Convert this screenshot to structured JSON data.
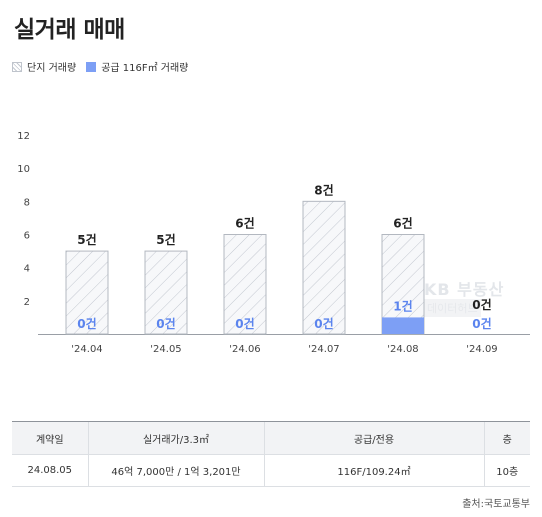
{
  "page": {
    "title": "실거래 매매",
    "source": "출처:국토교통부"
  },
  "legend": {
    "complex_label": "단지 거래량",
    "unit_label": "공급 116F㎡ 거래량"
  },
  "watermark": {
    "line1": "KB 부동산",
    "line2": "데이터허브"
  },
  "colors": {
    "accent_blue": "#7d9ff5",
    "count_blue": "#5b84ee",
    "hatch_line": "#c3c8d0"
  },
  "chart_data": {
    "type": "bar",
    "categories": [
      "'24.04",
      "'24.05",
      "'24.06",
      "'24.07",
      "'24.08",
      "'24.09"
    ],
    "series": [
      {
        "name": "단지 거래량",
        "values": [
          5,
          5,
          6,
          8,
          6,
          0
        ],
        "labels": [
          "5건",
          "5건",
          "6건",
          "8건",
          "6건",
          "0건"
        ]
      },
      {
        "name": "공급 116F㎡ 거래량",
        "values": [
          0,
          0,
          0,
          0,
          1,
          0
        ],
        "labels": [
          "0건",
          "0건",
          "0건",
          "0건",
          "1건",
          "0건"
        ]
      }
    ],
    "ylim": [
      0,
      12
    ],
    "yticks": [
      2,
      4,
      6,
      8,
      10,
      12
    ],
    "grid": false,
    "legend_position": "top-left"
  },
  "table": {
    "headers": [
      "계약일",
      "실거래가/3.3㎡",
      "공급/전용",
      "층"
    ],
    "rows": [
      [
        "24.08.05",
        "46억 7,000만 / 1억 3,201만",
        "116F/109.24㎡",
        "10층"
      ]
    ]
  }
}
